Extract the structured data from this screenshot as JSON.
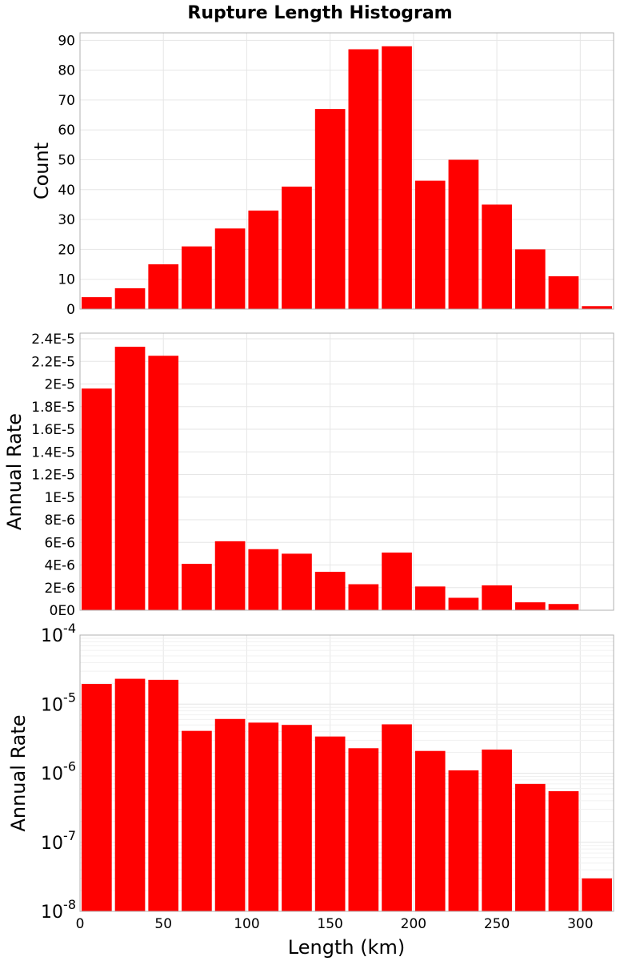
{
  "chart_data": {
    "title": "Rupture Length Histogram",
    "type": "bar",
    "bar_color": "#ff0000",
    "bin_width": 20,
    "x": [
      10,
      30,
      50,
      70,
      90,
      110,
      130,
      150,
      170,
      190,
      210,
      230,
      250,
      270,
      290,
      310
    ],
    "xlabel": "Length (km)",
    "xlim": [
      0,
      320
    ],
    "xticks": [
      0,
      50,
      100,
      150,
      200,
      250,
      300
    ],
    "xtick_labels": [
      "0",
      "50",
      "100",
      "150",
      "200",
      "250",
      "300"
    ],
    "grid": true,
    "panels": [
      {
        "ylabel": "Count",
        "yscale": "linear",
        "ylim": [
          0,
          92.5
        ],
        "yticks": [
          0,
          10,
          20,
          30,
          40,
          50,
          60,
          70,
          80,
          90
        ],
        "ytick_labels": [
          "0",
          "10",
          "20",
          "30",
          "40",
          "50",
          "60",
          "70",
          "80",
          "90"
        ],
        "values": [
          4,
          7,
          15,
          21,
          27,
          33,
          41,
          67,
          87,
          88,
          43,
          50,
          35,
          20,
          11,
          1
        ]
      },
      {
        "ylabel": "Annual Rate",
        "yscale": "linear",
        "ylim": [
          0,
          2.45e-05
        ],
        "yticks": [
          0,
          2e-06,
          4e-06,
          6e-06,
          8e-06,
          1e-05,
          1.2e-05,
          1.4e-05,
          1.6e-05,
          1.8e-05,
          2e-05,
          2.2e-05,
          2.4e-05
        ],
        "ytick_labels": [
          "0E0",
          "2E-6",
          "4E-6",
          "6E-6",
          "8E-6",
          "1E-5",
          "1.2E-5",
          "1.4E-5",
          "1.6E-5",
          "1.8E-5",
          "2E-5",
          "2.2E-5",
          "2.4E-5"
        ],
        "values": [
          1.96e-05,
          2.33e-05,
          2.25e-05,
          4.1e-06,
          6.1e-06,
          5.4e-06,
          5e-06,
          3.4e-06,
          2.3e-06,
          5.1e-06,
          2.1e-06,
          1.1e-06,
          2.2e-06,
          7e-07,
          5.5e-07,
          3e-08
        ]
      },
      {
        "ylabel": "Annual Rate",
        "yscale": "log",
        "ylim": [
          1e-08,
          0.0001
        ],
        "yticks": [
          1e-08,
          1e-07,
          1e-06,
          1e-05,
          0.0001
        ],
        "ytick_labels": [
          {
            "base": "10",
            "exp": "-8"
          },
          {
            "base": "10",
            "exp": "-7"
          },
          {
            "base": "10",
            "exp": "-6"
          },
          {
            "base": "10",
            "exp": "-5"
          },
          {
            "base": "10",
            "exp": "-4"
          }
        ],
        "values": [
          1.96e-05,
          2.33e-05,
          2.25e-05,
          4.1e-06,
          6.1e-06,
          5.4e-06,
          5e-06,
          3.4e-06,
          2.3e-06,
          5.1e-06,
          2.1e-06,
          1.1e-06,
          2.2e-06,
          7e-07,
          5.5e-07,
          3e-08
        ]
      }
    ]
  }
}
